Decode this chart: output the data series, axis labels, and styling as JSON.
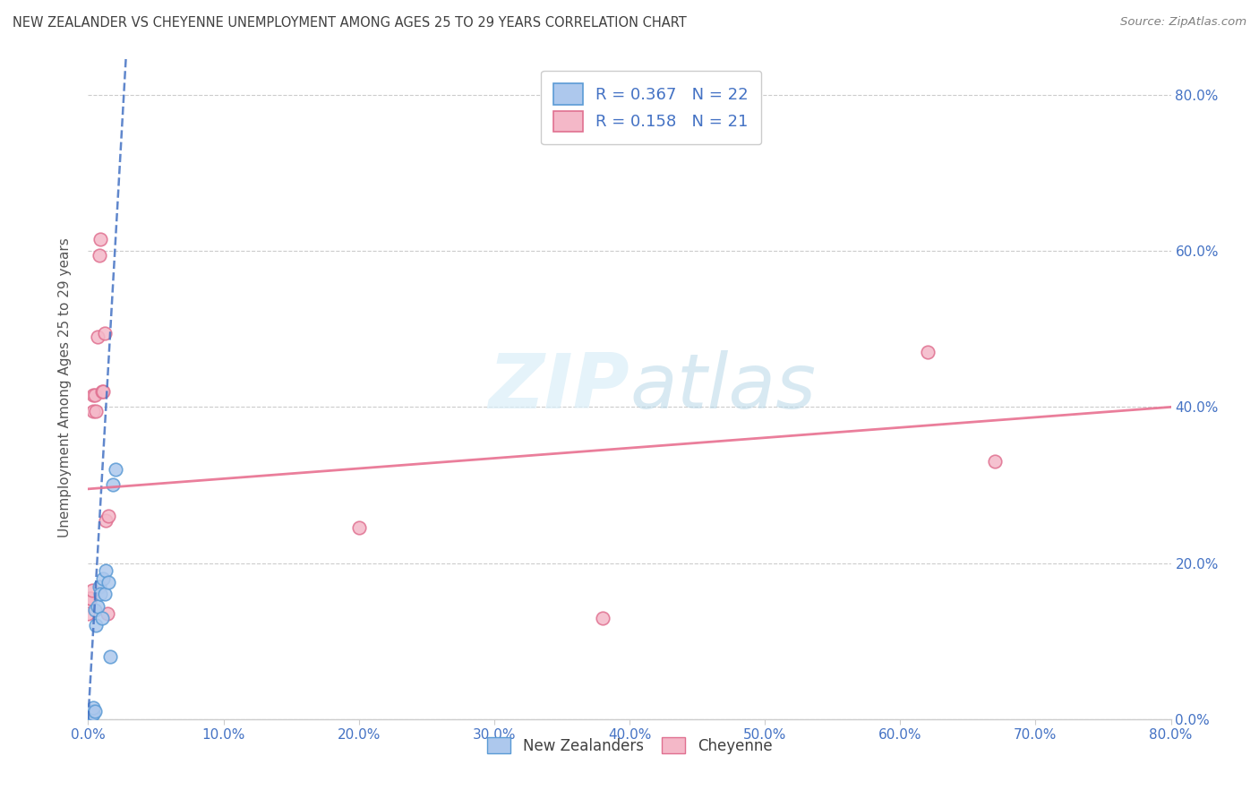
{
  "title": "NEW ZEALANDER VS CHEYENNE UNEMPLOYMENT AMONG AGES 25 TO 29 YEARS CORRELATION CHART",
  "source": "Source: ZipAtlas.com",
  "ylabel": "Unemployment Among Ages 25 to 29 years",
  "legend_nz_label": "New Zealanders",
  "legend_ch_label": "Cheyenne",
  "nz_color": "#adc8ed",
  "nz_edge_color": "#5b9bd5",
  "ch_color": "#f4b8c8",
  "ch_edge_color": "#e07090",
  "nz_trend_color": "#4472c4",
  "ch_trend_color": "#e87090",
  "blue_label_color": "#4472c4",
  "title_color": "#404040",
  "source_color": "#808080",
  "axis_label_color": "#4472c4",
  "xlim": [
    0.0,
    0.8
  ],
  "ylim": [
    0.0,
    0.85
  ],
  "nz_x": [
    0.0,
    0.001,
    0.002,
    0.002,
    0.003,
    0.003,
    0.004,
    0.004,
    0.005,
    0.005,
    0.006,
    0.007,
    0.008,
    0.009,
    0.01,
    0.011,
    0.012,
    0.013,
    0.015,
    0.016,
    0.018,
    0.02
  ],
  "nz_y": [
    0.005,
    0.004,
    0.006,
    0.008,
    0.005,
    0.01,
    0.007,
    0.015,
    0.01,
    0.14,
    0.12,
    0.145,
    0.17,
    0.16,
    0.13,
    0.18,
    0.16,
    0.19,
    0.175,
    0.08,
    0.3,
    0.32
  ],
  "ch_x": [
    0.0,
    0.001,
    0.002,
    0.003,
    0.004,
    0.004,
    0.005,
    0.006,
    0.007,
    0.008,
    0.009,
    0.01,
    0.011,
    0.012,
    0.013,
    0.014,
    0.015,
    0.2,
    0.38,
    0.62,
    0.67
  ],
  "ch_y": [
    0.135,
    0.155,
    0.155,
    0.165,
    0.395,
    0.415,
    0.415,
    0.395,
    0.49,
    0.595,
    0.615,
    0.42,
    0.42,
    0.495,
    0.255,
    0.135,
    0.26,
    0.245,
    0.13,
    0.47,
    0.33
  ],
  "nz_trend_x0": 0.0,
  "nz_trend_x1": 0.028,
  "nz_trend_y0": 0.0,
  "nz_trend_y1": 0.85,
  "ch_trend_x0": 0.0,
  "ch_trend_x1": 0.8,
  "ch_trend_y0": 0.295,
  "ch_trend_y1": 0.4,
  "marker_size": 110,
  "grid_color": "#cccccc",
  "background_color": "#ffffff",
  "watermark_color": "#daeef8",
  "nz_R": "0.367",
  "nz_N": "22",
  "ch_R": "0.158",
  "ch_N": "21"
}
